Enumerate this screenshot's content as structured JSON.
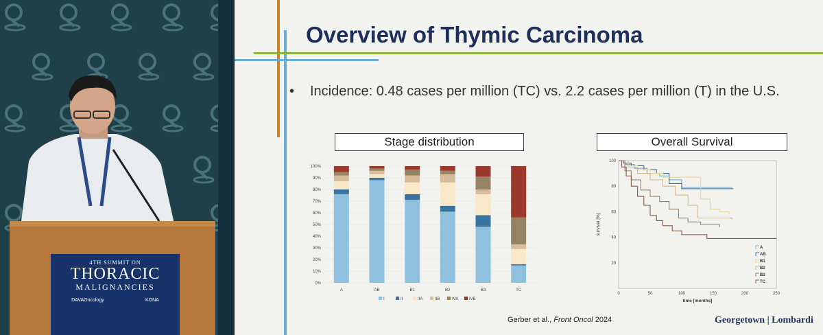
{
  "podium_sign": {
    "line1": "4TH SUMMIT ON",
    "line2": "THORACIC",
    "line3": "MALIGNANCIES",
    "logo_left": "DAVAOncology",
    "logo_right": "KONA"
  },
  "slide": {
    "title": "Overview of Thymic Carcinoma",
    "bullet": "Incidence: 0.48 cases per million (TC) vs. 2.2 cases per million (T) in the U.S.",
    "bullet_marker": "•",
    "stage_box": "Stage distribution",
    "survival_box": "Overall Survival",
    "citation_prefix": "Gerber et al., ",
    "citation_journal": "Front Oncol",
    "citation_year": " 2024",
    "brand": "Georgetown | Lombardi"
  },
  "chart_data": [
    {
      "type": "bar",
      "stacked": true,
      "categories": [
        "A",
        "AB",
        "B1",
        "B2",
        "B3",
        "TC"
      ],
      "ytick_labels": [
        "0%",
        "10%",
        "20%",
        "30%",
        "40%",
        "50%",
        "60%",
        "70%",
        "80%",
        "90%",
        "100%"
      ],
      "ylim": [
        0,
        100
      ],
      "legend_position": "bottom",
      "series": [
        {
          "name": "I",
          "color": "#8fc0de",
          "values": [
            76,
            88,
            71,
            61,
            48,
            15
          ]
        },
        {
          "name": "II",
          "color": "#3a72a0",
          "values": [
            4,
            2,
            5,
            5,
            10,
            1
          ]
        },
        {
          "name": "IIA",
          "color": "#f8e8c8",
          "values": [
            7,
            3,
            10,
            20,
            18,
            13
          ]
        },
        {
          "name": "IIB",
          "color": "#d6bc98",
          "values": [
            5,
            3,
            6,
            7,
            4,
            4
          ]
        },
        {
          "name": "IVA",
          "color": "#958462",
          "values": [
            3,
            2,
            5,
            3,
            11,
            23
          ]
        },
        {
          "name": "IVB",
          "color": "#9b3a2c",
          "values": [
            5,
            2,
            3,
            4,
            9,
            44
          ]
        }
      ]
    },
    {
      "type": "line",
      "step": true,
      "xlabel": "time [months]",
      "ylabel": "survival [%]",
      "xlim": [
        0,
        250
      ],
      "ylim": [
        0,
        100
      ],
      "xticks": [
        0,
        50,
        100,
        150,
        200,
        250
      ],
      "yticks": [
        20,
        40,
        60,
        80,
        100
      ],
      "legend_position": "bottom-right",
      "series": [
        {
          "name": "A",
          "color": "#6fb0d8",
          "points": [
            [
              0,
              100
            ],
            [
              10,
              97
            ],
            [
              25,
              94
            ],
            [
              45,
              90
            ],
            [
              65,
              88
            ],
            [
              80,
              85
            ],
            [
              100,
              79
            ],
            [
              130,
              79
            ],
            [
              180,
              79
            ]
          ]
        },
        {
          "name": "AB",
          "color": "#3a6ea0",
          "points": [
            [
              0,
              100
            ],
            [
              8,
              98
            ],
            [
              20,
              96
            ],
            [
              40,
              93
            ],
            [
              60,
              90
            ],
            [
              80,
              82
            ],
            [
              100,
              78
            ],
            [
              150,
              78
            ],
            [
              182,
              78
            ]
          ]
        },
        {
          "name": "B1",
          "color": "#e8d89a",
          "points": [
            [
              0,
              100
            ],
            [
              15,
              96
            ],
            [
              30,
              93
            ],
            [
              50,
              90
            ],
            [
              70,
              87
            ],
            [
              100,
              87
            ],
            [
              130,
              70
            ],
            [
              145,
              62
            ],
            [
              160,
              60
            ],
            [
              175,
              58
            ]
          ]
        },
        {
          "name": "B2",
          "color": "#d8b888",
          "points": [
            [
              0,
              100
            ],
            [
              15,
              95
            ],
            [
              30,
              90
            ],
            [
              50,
              85
            ],
            [
              70,
              80
            ],
            [
              90,
              73
            ],
            [
              110,
              65
            ],
            [
              125,
              55
            ],
            [
              150,
              55
            ],
            [
              180,
              54
            ]
          ]
        },
        {
          "name": "B3",
          "color": "#9a8462",
          "points": [
            [
              0,
              100
            ],
            [
              10,
              92
            ],
            [
              20,
              85
            ],
            [
              35,
              77
            ],
            [
              50,
              72
            ],
            [
              65,
              68
            ],
            [
              80,
              62
            ],
            [
              95,
              55
            ],
            [
              110,
              52
            ],
            [
              130,
              50
            ],
            [
              160,
              48
            ]
          ]
        },
        {
          "name": "TC",
          "color": "#8a5a48",
          "points": [
            [
              0,
              100
            ],
            [
              5,
              95
            ],
            [
              12,
              88
            ],
            [
              20,
              80
            ],
            [
              30,
              72
            ],
            [
              40,
              65
            ],
            [
              50,
              57
            ],
            [
              60,
              53
            ],
            [
              70,
              49
            ],
            [
              85,
              45
            ],
            [
              100,
              42
            ],
            [
              110,
              42
            ],
            [
              140,
              39
            ],
            [
              180,
              39
            ],
            [
              250,
              39
            ]
          ]
        }
      ]
    }
  ]
}
